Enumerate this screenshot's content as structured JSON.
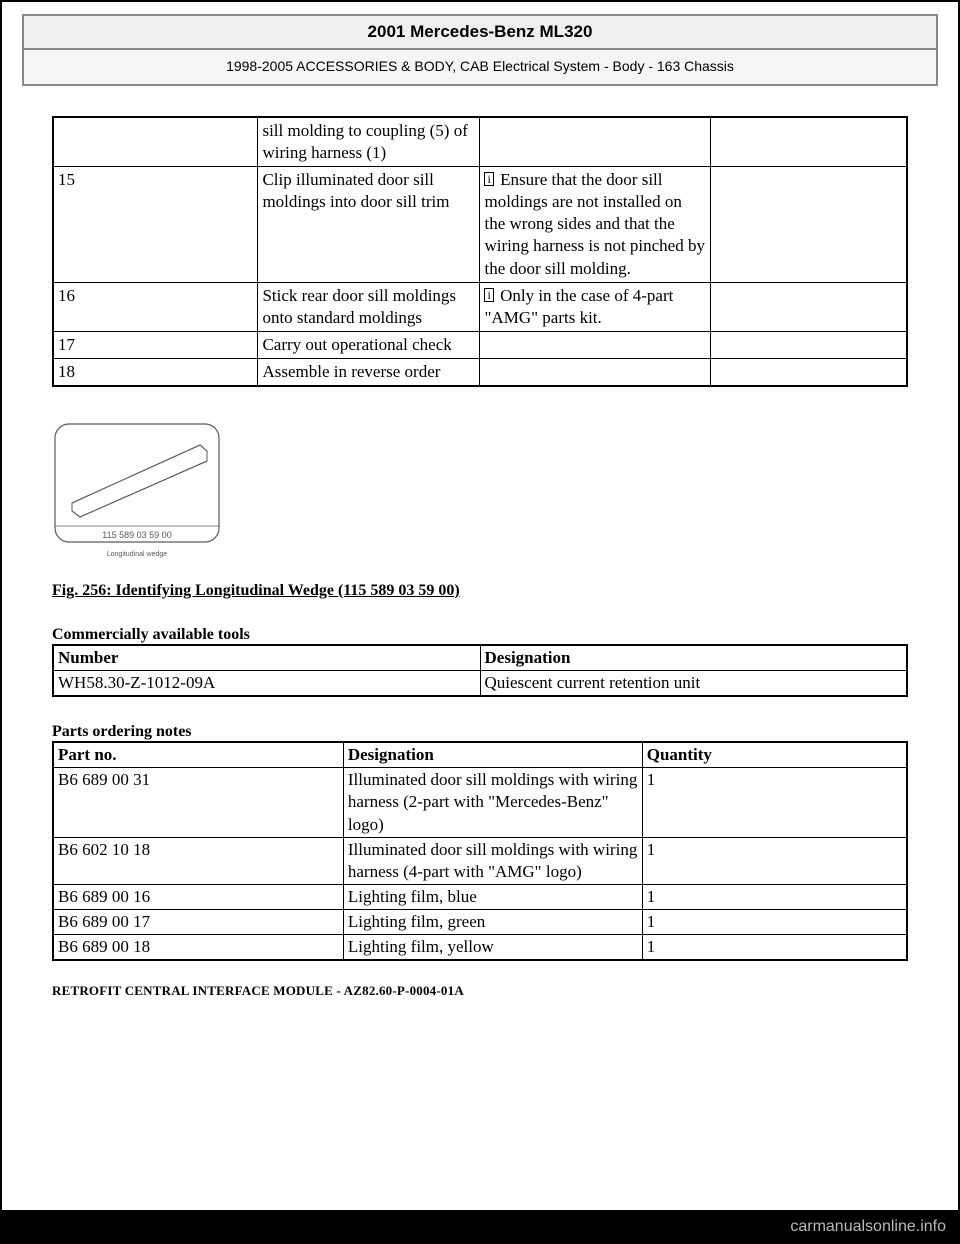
{
  "header": {
    "title": "2001 Mercedes-Benz ML320",
    "subtitle": "1998-2005 ACCESSORIES & BODY, CAB Electrical System - Body - 163 Chassis"
  },
  "steps": {
    "rows": [
      {
        "num": "",
        "action": "sill molding to coupling (5) of wiring harness (1)",
        "note": "",
        "info_icon": false,
        "extra": ""
      },
      {
        "num": "15",
        "action": "Clip illuminated door sill moldings into door sill trim",
        "note": "Ensure that the door sill moldings are not installed on the wrong sides and that the wiring harness is not pinched by the door sill molding.",
        "info_icon": true,
        "extra": ""
      },
      {
        "num": "16",
        "action": "Stick rear door sill moldings onto standard moldings",
        "note": "Only in the case of 4-part \"AMG\" parts kit.",
        "info_icon": true,
        "extra": ""
      },
      {
        "num": "17",
        "action": "Carry out operational check",
        "note": "",
        "info_icon": false,
        "extra": ""
      },
      {
        "num": "18",
        "action": "Assemble in reverse order",
        "note": "",
        "info_icon": false,
        "extra": ""
      }
    ]
  },
  "figure": {
    "part_number": "115 589 03 59 00",
    "subcaption": "Longitudinal wedge",
    "caption": "Fig. 256: Identifying Longitudinal Wedge (115 589 03 59 00)"
  },
  "tools": {
    "heading": "Commercially available tools",
    "columns": [
      "Number",
      "Designation"
    ],
    "rows": [
      [
        "WH58.30-Z-1012-09A",
        "Quiescent current retention unit"
      ]
    ]
  },
  "parts": {
    "heading": "Parts ordering notes",
    "columns": [
      "Part no.",
      "Designation",
      "Quantity"
    ],
    "rows": [
      [
        "B6 689 00 31",
        "Illuminated door sill moldings with wiring harness (2-part with \"Mercedes-Benz\" logo)",
        "1"
      ],
      [
        "B6 602 10 18",
        "Illuminated door sill moldings with wiring harness (4-part with \"AMG\" logo)",
        "1"
      ],
      [
        "B6 689 00 16",
        "Lighting film, blue",
        "1"
      ],
      [
        "B6 689 00 17",
        "Lighting film, green",
        "1"
      ],
      [
        "B6 689 00 18",
        "Lighting film, yellow",
        "1"
      ]
    ]
  },
  "footer_heading": "RETROFIT CENTRAL INTERFACE MODULE - AZ82.60-P-0004-01A",
  "watermark": "carmanualsonline.info",
  "icons": {
    "info_glyph": "i"
  }
}
